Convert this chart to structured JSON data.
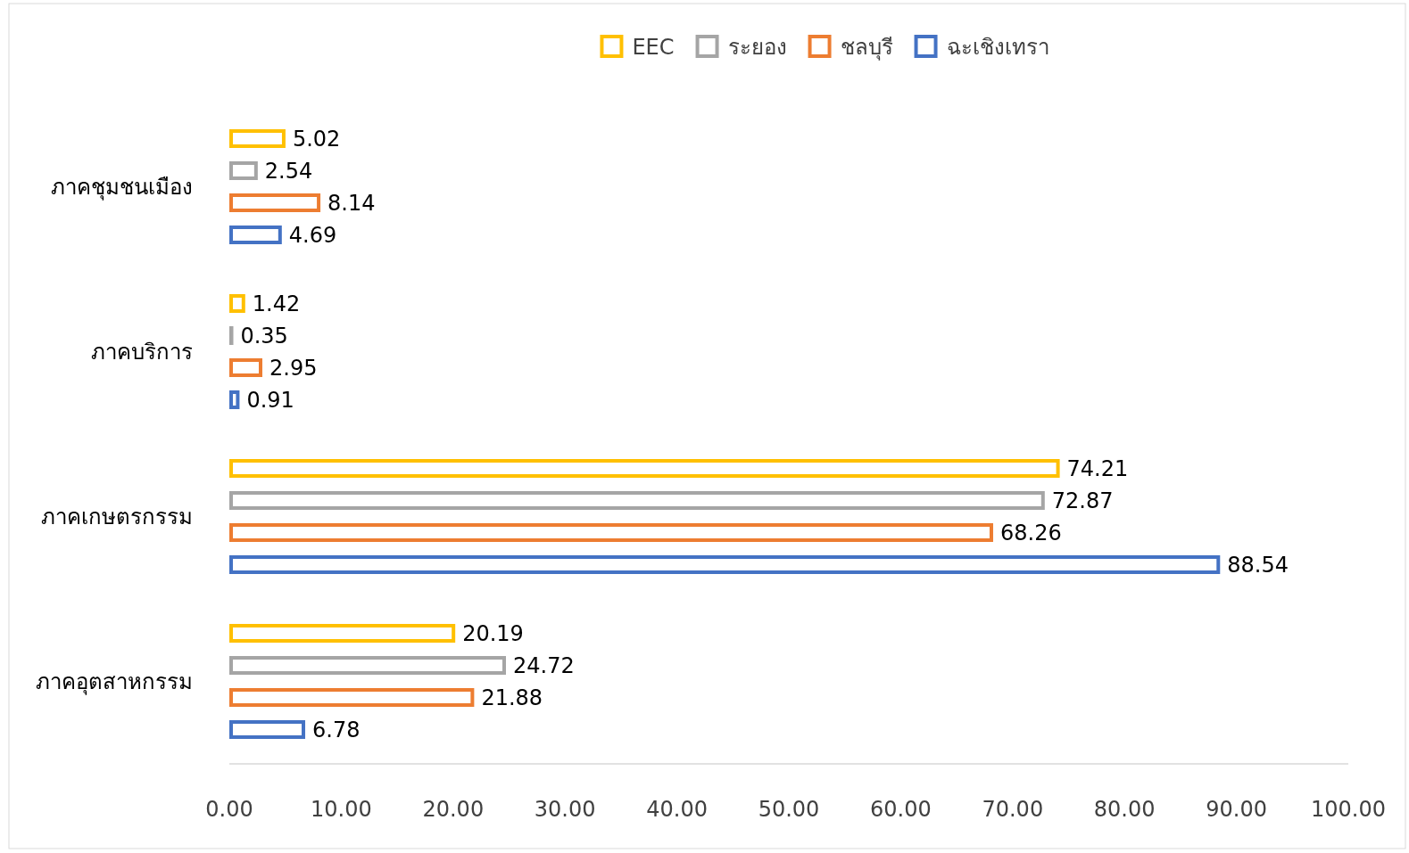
{
  "chart_data": {
    "type": "bar",
    "orientation": "horizontal",
    "categories": [
      "ภาคชุมชนเมือง",
      "ภาคบริการ",
      "ภาคเกษตรกรรม",
      "ภาคอุตสาหกรรม"
    ],
    "series": [
      {
        "name": "EEC",
        "color": "#ffc000",
        "values": [
          5.02,
          1.42,
          74.21,
          20.19
        ]
      },
      {
        "name": "ระยอง",
        "color": "#a5a5a5",
        "values": [
          2.54,
          0.35,
          72.87,
          24.72
        ]
      },
      {
        "name": "ชลบุรี",
        "color": "#ed7d31",
        "values": [
          8.14,
          2.95,
          68.26,
          21.88
        ]
      },
      {
        "name": "ฉะเชิงเทรา",
        "color": "#4472c4",
        "values": [
          4.69,
          0.91,
          88.54,
          6.78
        ]
      }
    ],
    "xlim": [
      0,
      100
    ],
    "xticks": [
      {
        "value": 0,
        "label": "0.00"
      },
      {
        "value": 10,
        "label": "10.00"
      },
      {
        "value": 20,
        "label": "20.00"
      },
      {
        "value": 30,
        "label": "30.00"
      },
      {
        "value": 40,
        "label": "40.00"
      },
      {
        "value": 50,
        "label": "50.00"
      },
      {
        "value": 60,
        "label": "60.00"
      },
      {
        "value": 70,
        "label": "70.00"
      },
      {
        "value": 80,
        "label": "80.00"
      },
      {
        "value": 90,
        "label": "90.00"
      },
      {
        "value": 100,
        "label": "100.00"
      }
    ],
    "data_labels": true,
    "legend": "top",
    "grid": false
  }
}
